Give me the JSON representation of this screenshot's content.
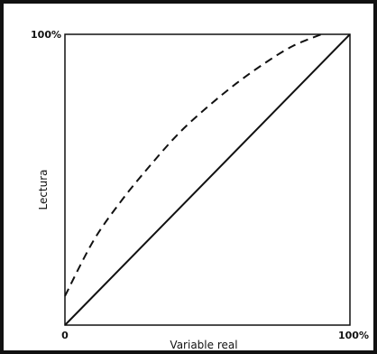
{
  "chart_data": {
    "type": "line",
    "title": "",
    "xlabel": "Variable real",
    "ylabel": "Lectura",
    "xlim": [
      0,
      100
    ],
    "ylim": [
      0,
      100
    ],
    "x_tick_labels": [
      "0",
      "100%"
    ],
    "y_tick_labels": [
      "100%"
    ],
    "grid": false,
    "legend": "none",
    "series": [
      {
        "style": "solid",
        "x": [
          0,
          100
        ],
        "y": [
          0,
          100
        ]
      },
      {
        "style": "dashed",
        "x": [
          0,
          10,
          20,
          30,
          40,
          50,
          60,
          70,
          80,
          90
        ],
        "y": [
          10,
          29,
          43,
          55,
          66,
          75,
          83,
          90,
          96,
          100
        ]
      }
    ]
  },
  "colors": {
    "ink": "#111111",
    "frame": "#111111",
    "background": "#ffffff"
  }
}
